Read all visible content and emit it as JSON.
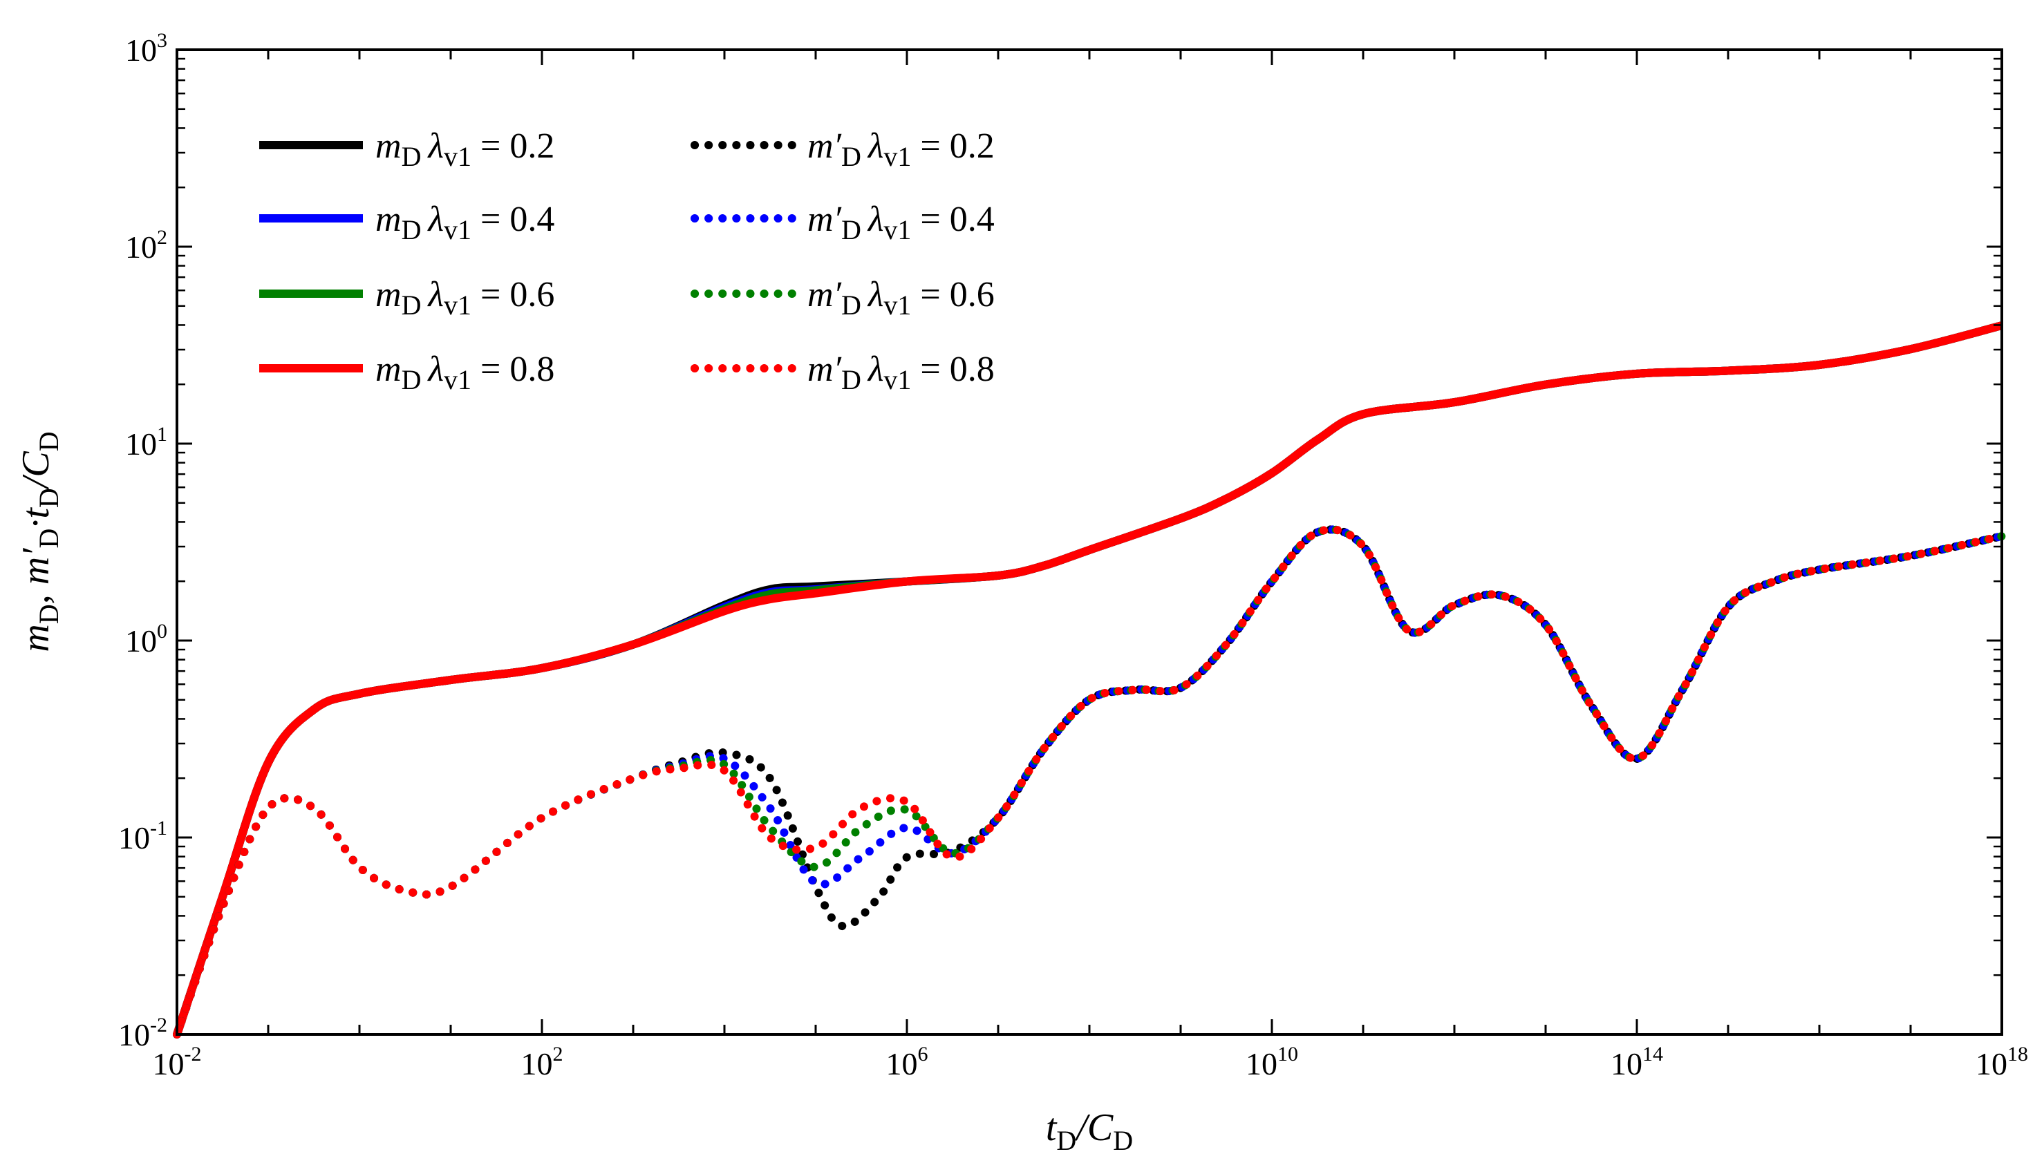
{
  "chart_data": {
    "type": "line",
    "scale": {
      "x": "log",
      "y": "log"
    },
    "xlim": [
      0.01,
      1e+18
    ],
    "ylim": [
      0.01,
      1000
    ],
    "xticks": [
      {
        "base": "10",
        "exp": "-2"
      },
      {
        "base": "10",
        "exp": "2"
      },
      {
        "base": "10",
        "exp": "6"
      },
      {
        "base": "10",
        "exp": "10"
      },
      {
        "base": "10",
        "exp": "14"
      },
      {
        "base": "10",
        "exp": "18"
      }
    ],
    "yticks": [
      {
        "base": "10",
        "exp": "-2"
      },
      {
        "base": "10",
        "exp": "-1"
      },
      {
        "base": "10",
        "exp": "0"
      },
      {
        "base": "10",
        "exp": "1"
      },
      {
        "base": "10",
        "exp": "2"
      },
      {
        "base": "10",
        "exp": "3"
      }
    ],
    "xlabel": {
      "main": "t",
      "sub1": "D",
      "mid": "/C",
      "sub2": "D"
    },
    "ylabel": {
      "p1": "m",
      "s1": "D",
      "p2": ", m′",
      "s2": "D",
      "p3": "·t",
      "s3": "D",
      "p4": "/C",
      "s4": "D"
    },
    "legend": {
      "position": "top-left",
      "parameter": "λ",
      "parameter_sub": "v1",
      "entries": [
        {
          "symbol": "m",
          "prime": false,
          "value": "0.2",
          "color": "#000000",
          "style": "solid"
        },
        {
          "symbol": "m",
          "prime": false,
          "value": "0.4",
          "color": "#0000ff",
          "style": "solid"
        },
        {
          "symbol": "m",
          "prime": false,
          "value": "0.6",
          "color": "#008000",
          "style": "solid"
        },
        {
          "symbol": "m",
          "prime": false,
          "value": "0.8",
          "color": "#ff0000",
          "style": "solid"
        },
        {
          "symbol": "m′",
          "prime": true,
          "value": "0.2",
          "color": "#000000",
          "style": "dotted"
        },
        {
          "symbol": "m′",
          "prime": true,
          "value": "0.4",
          "color": "#0000ff",
          "style": "dotted"
        },
        {
          "symbol": "m′",
          "prime": true,
          "value": "0.6",
          "color": "#008000",
          "style": "dotted"
        },
        {
          "symbol": "m′",
          "prime": true,
          "value": "0.8",
          "color": "#ff0000",
          "style": "dotted"
        }
      ]
    },
    "series": [
      {
        "name": "m_D λv1=0.2",
        "color": "#000000",
        "style": "solid",
        "points": [
          [
            -2,
            -2
          ],
          [
            -1.5,
            -1.3
          ],
          [
            -1,
            -0.62
          ],
          [
            -0.5,
            -0.35
          ],
          [
            0,
            -0.27
          ],
          [
            1,
            -0.2
          ],
          [
            2,
            -0.14
          ],
          [
            3,
            -0.02
          ],
          [
            4,
            0.18
          ],
          [
            4.5,
            0.26
          ],
          [
            5,
            0.275
          ],
          [
            6,
            0.3
          ],
          [
            7,
            0.33
          ],
          [
            7.5,
            0.38
          ],
          [
            8,
            0.46
          ],
          [
            9,
            0.62
          ],
          [
            9.5,
            0.72
          ],
          [
            10,
            0.85
          ],
          [
            10.5,
            1.02
          ],
          [
            11,
            1.15
          ],
          [
            12,
            1.21
          ],
          [
            13,
            1.3
          ],
          [
            14,
            1.355
          ],
          [
            15,
            1.37
          ],
          [
            16,
            1.4
          ],
          [
            17,
            1.48
          ],
          [
            18,
            1.6
          ]
        ]
      },
      {
        "name": "m_D λv1=0.4",
        "color": "#0000ff",
        "style": "solid",
        "points": [
          [
            -2,
            -2
          ],
          [
            -1.5,
            -1.3
          ],
          [
            -1,
            -0.62
          ],
          [
            -0.5,
            -0.35
          ],
          [
            0,
            -0.27
          ],
          [
            1,
            -0.2
          ],
          [
            2,
            -0.14
          ],
          [
            3,
            -0.02
          ],
          [
            4,
            0.17
          ],
          [
            4.5,
            0.245
          ],
          [
            5,
            0.26
          ],
          [
            6,
            0.3
          ],
          [
            7,
            0.33
          ],
          [
            7.5,
            0.38
          ],
          [
            8,
            0.46
          ],
          [
            9,
            0.62
          ],
          [
            9.5,
            0.72
          ],
          [
            10,
            0.85
          ],
          [
            10.5,
            1.02
          ],
          [
            11,
            1.15
          ],
          [
            12,
            1.21
          ],
          [
            13,
            1.3
          ],
          [
            14,
            1.355
          ],
          [
            15,
            1.37
          ],
          [
            16,
            1.4
          ],
          [
            17,
            1.48
          ],
          [
            18,
            1.6
          ]
        ]
      },
      {
        "name": "m_D λv1=0.6",
        "color": "#008000",
        "style": "solid",
        "points": [
          [
            -2,
            -2
          ],
          [
            -1.5,
            -1.3
          ],
          [
            -1,
            -0.62
          ],
          [
            -0.5,
            -0.35
          ],
          [
            0,
            -0.27
          ],
          [
            1,
            -0.2
          ],
          [
            2,
            -0.14
          ],
          [
            3,
            -0.02
          ],
          [
            4,
            0.16
          ],
          [
            4.5,
            0.235
          ],
          [
            5,
            0.255
          ],
          [
            6,
            0.3
          ],
          [
            7,
            0.33
          ],
          [
            7.5,
            0.38
          ],
          [
            8,
            0.46
          ],
          [
            9,
            0.62
          ],
          [
            9.5,
            0.72
          ],
          [
            10,
            0.85
          ],
          [
            10.5,
            1.02
          ],
          [
            11,
            1.15
          ],
          [
            12,
            1.21
          ],
          [
            13,
            1.3
          ],
          [
            14,
            1.355
          ],
          [
            15,
            1.37
          ],
          [
            16,
            1.4
          ],
          [
            17,
            1.48
          ],
          [
            18,
            1.6
          ]
        ]
      },
      {
        "name": "m_D λv1=0.8",
        "color": "#ff0000",
        "style": "solid",
        "points": [
          [
            -2,
            -2
          ],
          [
            -1.5,
            -1.3
          ],
          [
            -1,
            -0.62
          ],
          [
            -0.5,
            -0.35
          ],
          [
            0,
            -0.27
          ],
          [
            1,
            -0.2
          ],
          [
            2,
            -0.14
          ],
          [
            3,
            -0.02
          ],
          [
            4,
            0.15
          ],
          [
            4.5,
            0.21
          ],
          [
            5,
            0.24
          ],
          [
            6,
            0.3
          ],
          [
            7,
            0.33
          ],
          [
            7.5,
            0.38
          ],
          [
            8,
            0.46
          ],
          [
            9,
            0.62
          ],
          [
            9.5,
            0.72
          ],
          [
            10,
            0.85
          ],
          [
            10.5,
            1.02
          ],
          [
            11,
            1.15
          ],
          [
            12,
            1.21
          ],
          [
            13,
            1.3
          ],
          [
            14,
            1.355
          ],
          [
            15,
            1.37
          ],
          [
            16,
            1.4
          ],
          [
            17,
            1.48
          ],
          [
            18,
            1.6
          ]
        ]
      },
      {
        "name": "m'_D λv1=0.2",
        "color": "#000000",
        "style": "dotted",
        "points": [
          [
            -2,
            -2
          ],
          [
            -1.5,
            -1.35
          ],
          [
            -1,
            -0.85
          ],
          [
            -0.5,
            -0.85
          ],
          [
            0,
            -1.15
          ],
          [
            0.5,
            -1.27
          ],
          [
            1,
            -1.25
          ],
          [
            2,
            -0.9
          ],
          [
            3,
            -0.7
          ],
          [
            3.5,
            -0.62
          ],
          [
            4,
            -0.57
          ],
          [
            4.5,
            -0.7
          ],
          [
            5,
            -1.25
          ],
          [
            5.3,
            -1.45
          ],
          [
            5.7,
            -1.3
          ],
          [
            6,
            -1.1
          ],
          [
            6.5,
            -1.07
          ],
          [
            7,
            -0.9
          ],
          [
            7.5,
            -0.55
          ],
          [
            8,
            -0.3
          ],
          [
            8.5,
            -0.25
          ],
          [
            9,
            -0.24
          ],
          [
            9.5,
            -0.02
          ],
          [
            10,
            0.3
          ],
          [
            10.5,
            0.55
          ],
          [
            11,
            0.48
          ],
          [
            11.5,
            0.05
          ],
          [
            12,
            0.18
          ],
          [
            12.5,
            0.23
          ],
          [
            13,
            0.08
          ],
          [
            13.5,
            -0.33
          ],
          [
            14,
            -0.6
          ],
          [
            14.5,
            -0.25
          ],
          [
            15,
            0.17
          ],
          [
            15.5,
            0.3
          ],
          [
            16,
            0.36
          ],
          [
            17,
            0.43
          ],
          [
            18,
            0.53
          ]
        ]
      },
      {
        "name": "m'_D λv1=0.4",
        "color": "#0000ff",
        "style": "dotted",
        "points": [
          [
            -2,
            -2
          ],
          [
            -1.5,
            -1.35
          ],
          [
            -1,
            -0.85
          ],
          [
            -0.5,
            -0.85
          ],
          [
            0,
            -1.15
          ],
          [
            0.5,
            -1.27
          ],
          [
            1,
            -1.25
          ],
          [
            2,
            -0.9
          ],
          [
            3,
            -0.7
          ],
          [
            3.5,
            -0.63
          ],
          [
            4,
            -0.6
          ],
          [
            4.5,
            -0.85
          ],
          [
            5,
            -1.23
          ],
          [
            5.5,
            -1.1
          ],
          [
            6,
            -0.95
          ],
          [
            6.5,
            -1.08
          ],
          [
            7,
            -0.9
          ],
          [
            7.5,
            -0.55
          ],
          [
            8,
            -0.3
          ],
          [
            8.5,
            -0.25
          ],
          [
            9,
            -0.24
          ],
          [
            9.5,
            -0.02
          ],
          [
            10,
            0.3
          ],
          [
            10.5,
            0.55
          ],
          [
            11,
            0.48
          ],
          [
            11.5,
            0.05
          ],
          [
            12,
            0.18
          ],
          [
            12.5,
            0.23
          ],
          [
            13,
            0.08
          ],
          [
            13.5,
            -0.33
          ],
          [
            14,
            -0.6
          ],
          [
            14.5,
            -0.25
          ],
          [
            15,
            0.17
          ],
          [
            15.5,
            0.3
          ],
          [
            16,
            0.36
          ],
          [
            17,
            0.43
          ],
          [
            18,
            0.53
          ]
        ]
      },
      {
        "name": "m'_D λv1=0.6",
        "color": "#008000",
        "style": "dotted",
        "points": [
          [
            -2,
            -2
          ],
          [
            -1.5,
            -1.35
          ],
          [
            -1,
            -0.85
          ],
          [
            -0.5,
            -0.85
          ],
          [
            0,
            -1.15
          ],
          [
            0.5,
            -1.27
          ],
          [
            1,
            -1.25
          ],
          [
            2,
            -0.9
          ],
          [
            3,
            -0.7
          ],
          [
            3.5,
            -0.64
          ],
          [
            4,
            -0.63
          ],
          [
            4.5,
            -0.95
          ],
          [
            5,
            -1.15
          ],
          [
            5.5,
            -0.95
          ],
          [
            6,
            -0.86
          ],
          [
            6.5,
            -1.08
          ],
          [
            7,
            -0.9
          ],
          [
            7.5,
            -0.55
          ],
          [
            8,
            -0.3
          ],
          [
            8.5,
            -0.25
          ],
          [
            9,
            -0.24
          ],
          [
            9.5,
            -0.02
          ],
          [
            10,
            0.3
          ],
          [
            10.5,
            0.55
          ],
          [
            11,
            0.48
          ],
          [
            11.5,
            0.05
          ],
          [
            12,
            0.18
          ],
          [
            12.5,
            0.23
          ],
          [
            13,
            0.08
          ],
          [
            13.5,
            -0.33
          ],
          [
            14,
            -0.6
          ],
          [
            14.5,
            -0.25
          ],
          [
            15,
            0.17
          ],
          [
            15.5,
            0.3
          ],
          [
            16,
            0.36
          ],
          [
            17,
            0.43
          ],
          [
            18,
            0.53
          ]
        ]
      },
      {
        "name": "m'_D λv1=0.8",
        "color": "#ff0000",
        "style": "dotted",
        "points": [
          [
            -2,
            -2
          ],
          [
            -1.5,
            -1.35
          ],
          [
            -1,
            -0.85
          ],
          [
            -0.5,
            -0.85
          ],
          [
            0,
            -1.15
          ],
          [
            0.5,
            -1.27
          ],
          [
            1,
            -1.25
          ],
          [
            2,
            -0.9
          ],
          [
            3,
            -0.7
          ],
          [
            3.5,
            -0.65
          ],
          [
            4,
            -0.66
          ],
          [
            4.5,
            -1.0
          ],
          [
            5,
            -1.05
          ],
          [
            5.5,
            -0.85
          ],
          [
            6,
            -0.82
          ],
          [
            6.5,
            -1.1
          ],
          [
            7,
            -0.9
          ],
          [
            7.5,
            -0.55
          ],
          [
            8,
            -0.3
          ],
          [
            8.5,
            -0.25
          ],
          [
            9,
            -0.24
          ],
          [
            9.5,
            -0.02
          ],
          [
            10,
            0.3
          ],
          [
            10.5,
            0.55
          ],
          [
            11,
            0.48
          ],
          [
            11.5,
            0.05
          ],
          [
            12,
            0.18
          ],
          [
            12.5,
            0.23
          ],
          [
            13,
            0.08
          ],
          [
            13.5,
            -0.33
          ],
          [
            14,
            -0.6
          ],
          [
            14.5,
            -0.25
          ],
          [
            15,
            0.17
          ],
          [
            15.5,
            0.3
          ],
          [
            16,
            0.36
          ],
          [
            17,
            0.43
          ],
          [
            18,
            0.53
          ]
        ]
      }
    ]
  }
}
